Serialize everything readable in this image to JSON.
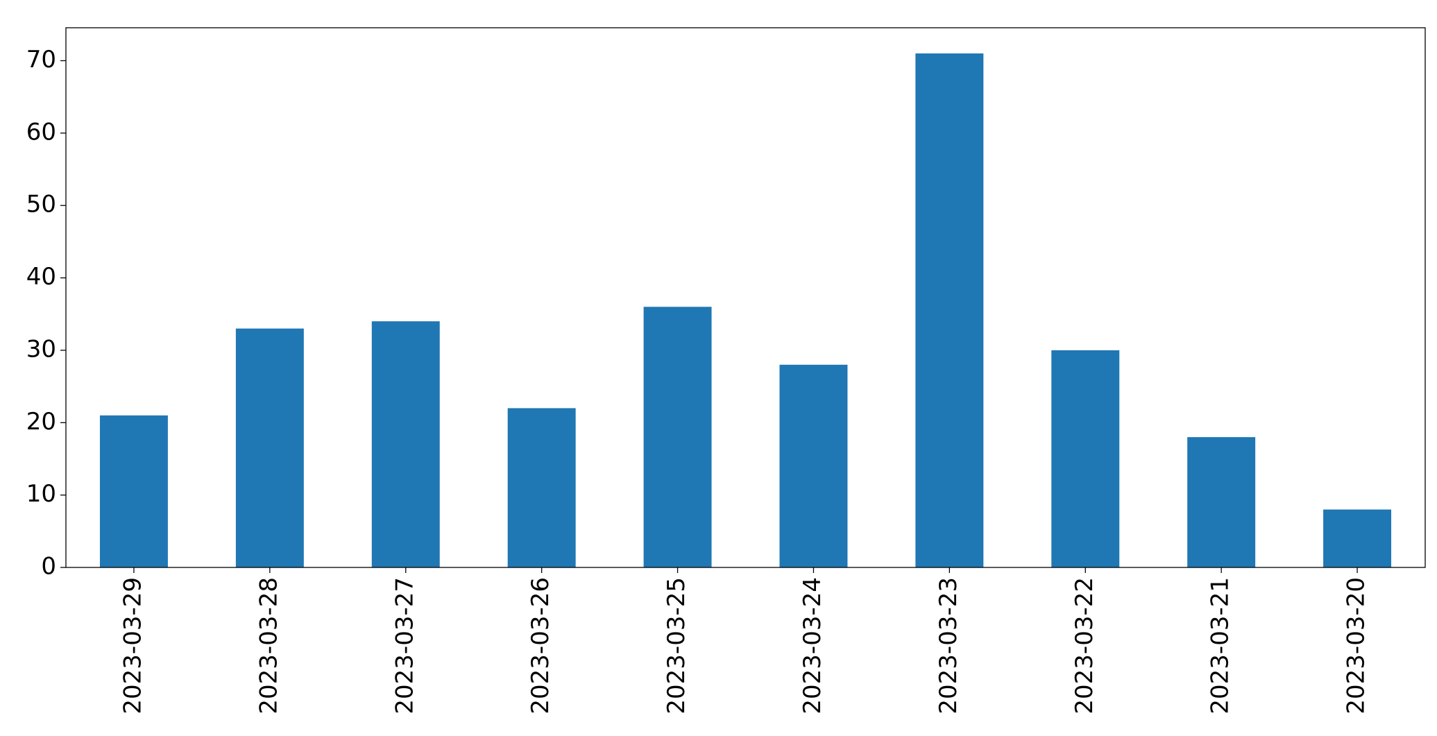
{
  "chart_data": {
    "type": "bar",
    "categories": [
      "2023-03-29",
      "2023-03-28",
      "2023-03-27",
      "2023-03-26",
      "2023-03-25",
      "2023-03-24",
      "2023-03-23",
      "2023-03-22",
      "2023-03-21",
      "2023-03-20"
    ],
    "values": [
      21,
      33,
      34,
      22,
      36,
      28,
      71,
      30,
      18,
      8
    ],
    "color": "#1f77b4",
    "ylim": [
      0,
      74.55
    ],
    "yticks": [
      0,
      10,
      20,
      30,
      40,
      50,
      60,
      70
    ],
    "grid": false
  }
}
